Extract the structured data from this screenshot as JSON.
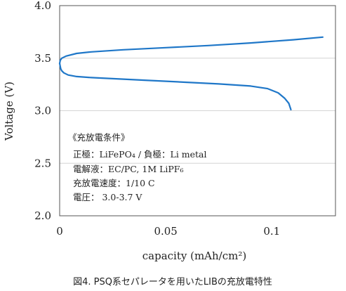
{
  "caption": "図4. PSQ系セパレータを用いたLIBの充放電特性",
  "chart_data": {
    "type": "line",
    "xlabel": "capacity (mAh/cm²)",
    "ylabel": "Voltage (V)",
    "xlim": [
      0,
      0.13
    ],
    "ylim": [
      2.0,
      4.0
    ],
    "xticks": [
      0,
      0.05,
      0.1
    ],
    "xtick_labels": [
      "0",
      "0.05",
      "0.1"
    ],
    "yticks": [
      2.0,
      2.5,
      3.0,
      3.5,
      4.0
    ],
    "ytick_labels": [
      "2.0",
      "2.5",
      "3.0",
      "3.5",
      "4.0"
    ],
    "grid": "horizontal",
    "series_color": "#1f77c8",
    "series": [
      {
        "points": [
          [
            0.0,
            3.45
          ],
          [
            0.0005,
            3.4
          ],
          [
            0.001,
            3.38
          ],
          [
            0.002,
            3.36
          ],
          [
            0.004,
            3.34
          ],
          [
            0.008,
            3.325
          ],
          [
            0.015,
            3.315
          ],
          [
            0.025,
            3.305
          ],
          [
            0.04,
            3.29
          ],
          [
            0.06,
            3.27
          ],
          [
            0.075,
            3.255
          ],
          [
            0.09,
            3.235
          ],
          [
            0.098,
            3.21
          ],
          [
            0.103,
            3.17
          ],
          [
            0.106,
            3.12
          ],
          [
            0.108,
            3.07
          ],
          [
            0.109,
            3.01
          ]
        ]
      },
      {
        "points": [
          [
            0.0,
            3.45
          ],
          [
            0.0003,
            3.48
          ],
          [
            0.001,
            3.5
          ],
          [
            0.003,
            3.52
          ],
          [
            0.008,
            3.545
          ],
          [
            0.015,
            3.56
          ],
          [
            0.03,
            3.58
          ],
          [
            0.05,
            3.6
          ],
          [
            0.07,
            3.62
          ],
          [
            0.09,
            3.645
          ],
          [
            0.11,
            3.675
          ],
          [
            0.124,
            3.7
          ]
        ]
      }
    ]
  },
  "conditions": {
    "title": "《充放電条件》",
    "lines": [
      "正極：LiFePO₄ / 負極：Li metal",
      "電解液：EC/PC, 1M LiPF₆",
      "充放電速度：1/10 C",
      "電圧： 3.0-3.7 V"
    ]
  }
}
